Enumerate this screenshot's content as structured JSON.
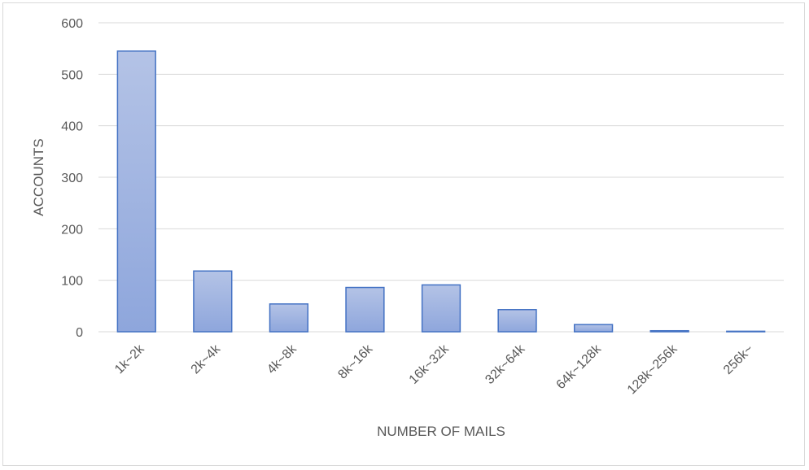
{
  "chart_data": {
    "type": "bar",
    "categories": [
      "1k~2k",
      "2k~4k",
      "4k~8k",
      "8k~16k",
      "16k~32k",
      "32k~64k",
      "64k~128k",
      "128k~256k",
      "256k~"
    ],
    "values": [
      545,
      118,
      54,
      86,
      91,
      43,
      14,
      2,
      1
    ],
    "xlabel": "NUMBER OF MAILS",
    "ylabel": "ACCOUNTS",
    "ylim": [
      0,
      600
    ],
    "yticks": [
      0,
      100,
      200,
      300,
      400,
      500,
      600
    ],
    "grid": true,
    "legend": "none",
    "colors": {
      "bar_top": "#b4c3e6",
      "bar_bottom": "#8ea6dc",
      "bar_border": "#4472c4",
      "grid": "#d9d9d9",
      "text": "#595959"
    }
  }
}
